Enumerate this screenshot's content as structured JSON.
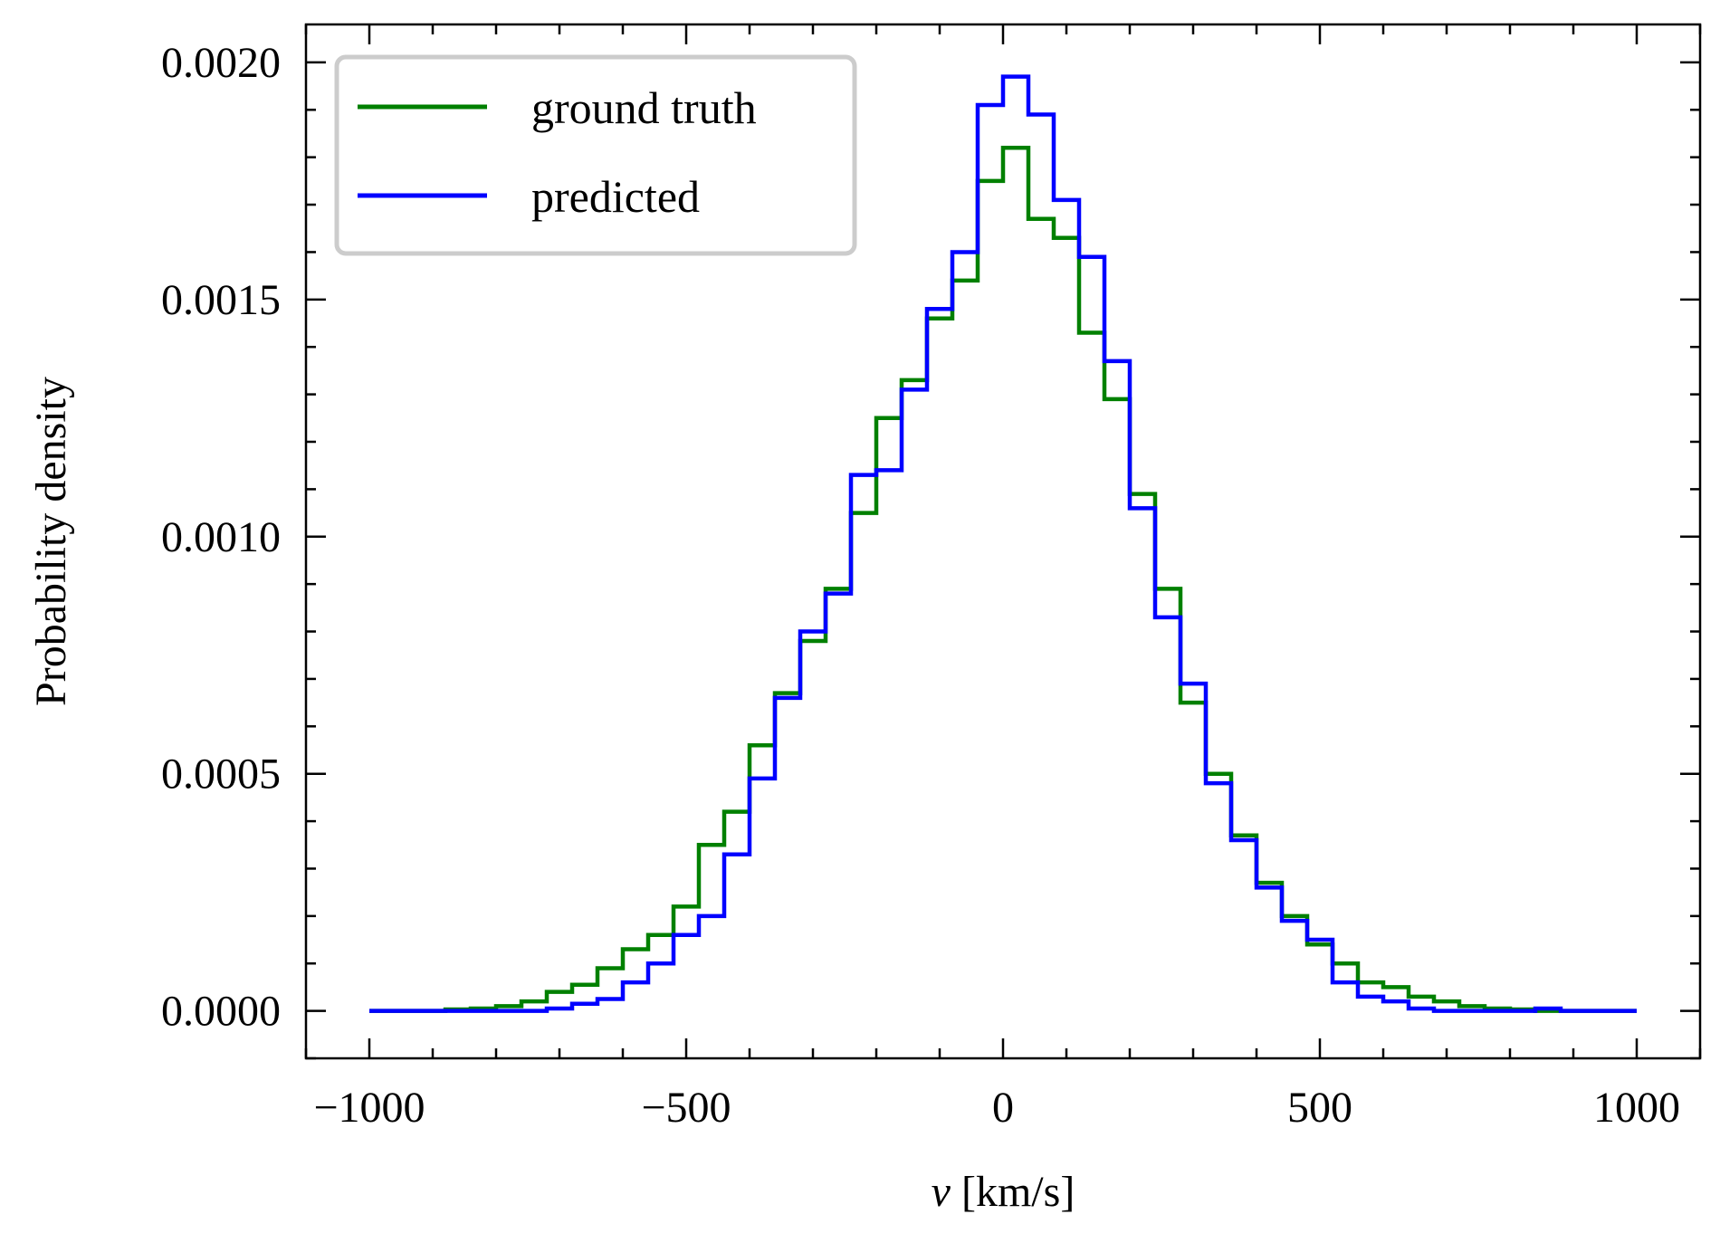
{
  "chart_data": {
    "type": "step-histogram",
    "title": "",
    "xlabel_italic": "v",
    "xlabel_rest": " [km/s]",
    "ylabel": "Probability density",
    "xlim": [
      -1100,
      1100
    ],
    "ylim": [
      -0.0001,
      0.00208
    ],
    "x_ticks": [
      -1000,
      -500,
      0,
      500,
      1000
    ],
    "x_tick_labels": [
      "−1000",
      "−500",
      "0",
      "500",
      "1000"
    ],
    "y_ticks": [
      0,
      0.0005,
      0.001,
      0.0015,
      0.002
    ],
    "y_tick_labels": [
      "0.0000",
      "0.0005",
      "0.0010",
      "0.0015",
      "0.0020"
    ],
    "legend_position": "top-left",
    "bin_edges": [
      -1000,
      -960,
      -920,
      -880,
      -840,
      -800,
      -760,
      -720,
      -680,
      -640,
      -600,
      -560,
      -520,
      -480,
      -440,
      -400,
      -360,
      -320,
      -280,
      -240,
      -200,
      -160,
      -120,
      -80,
      -40,
      0,
      40,
      80,
      120,
      160,
      200,
      240,
      280,
      320,
      360,
      400,
      440,
      480,
      520,
      560,
      600,
      640,
      680,
      720,
      760,
      800,
      840,
      880,
      920,
      960,
      1000
    ],
    "series": [
      {
        "name": "ground truth",
        "color": "#008000",
        "values": [
          0,
          0,
          0,
          3e-06,
          5e-06,
          1e-05,
          2e-05,
          4e-05,
          5.5e-05,
          9e-05,
          0.00013,
          0.00016,
          0.00022,
          0.00035,
          0.00042,
          0.00056,
          0.00067,
          0.00078,
          0.00089,
          0.00105,
          0.00125,
          0.00133,
          0.00146,
          0.00154,
          0.00175,
          0.00182,
          0.00167,
          0.00163,
          0.00143,
          0.00129,
          0.00109,
          0.00089,
          0.00065,
          0.0005,
          0.00037,
          0.00027,
          0.0002,
          0.00014,
          0.0001,
          6e-05,
          5e-05,
          3e-05,
          2e-05,
          1e-05,
          5e-06,
          3e-06,
          0,
          0,
          0,
          0
        ]
      },
      {
        "name": "predicted",
        "color": "#0000ff",
        "values": [
          0,
          0,
          0,
          0,
          0,
          0,
          0,
          5e-06,
          1.5e-05,
          2.5e-05,
          6e-05,
          0.0001,
          0.00016,
          0.0002,
          0.00033,
          0.00049,
          0.00066,
          0.0008,
          0.00088,
          0.00113,
          0.00114,
          0.00131,
          0.00148,
          0.0016,
          0.00191,
          0.00197,
          0.00189,
          0.00171,
          0.00159,
          0.00137,
          0.00106,
          0.00083,
          0.00069,
          0.00048,
          0.00036,
          0.00026,
          0.00019,
          0.00015,
          6e-05,
          3e-05,
          2e-05,
          5e-06,
          0,
          0,
          0,
          0,
          5e-06,
          0,
          0,
          0
        ]
      }
    ]
  }
}
